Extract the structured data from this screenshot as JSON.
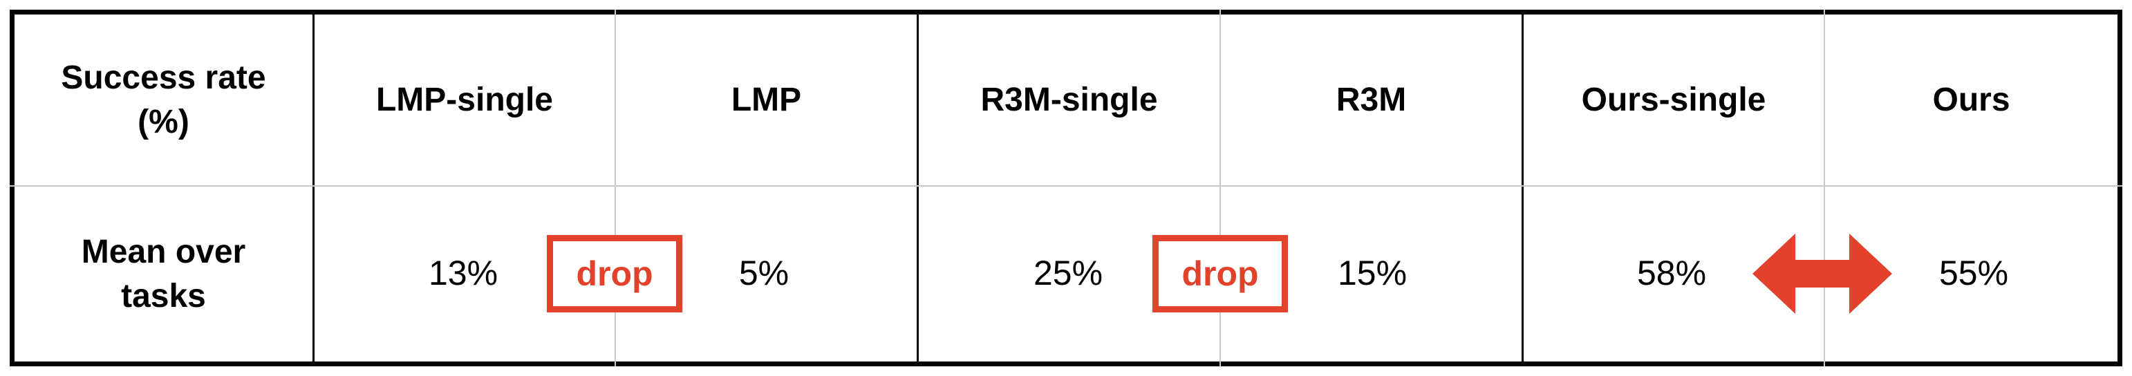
{
  "table": {
    "corner": {
      "line1": "Success rate",
      "line2": "(%)"
    },
    "columns": [
      "LMP-single",
      "LMP",
      "R3M-single",
      "R3M",
      "Ours-single",
      "Ours"
    ],
    "row": {
      "label_line1": "Mean over",
      "label_line2": "tasks"
    },
    "values": [
      "13%",
      "5%",
      "25%",
      "15%",
      "58%",
      "55%"
    ]
  },
  "annotations": {
    "drop_lmp": "drop",
    "drop_r3m": "drop",
    "ours_arrow_icon": "double-arrow-icon"
  },
  "colors": {
    "accent": "#e2412b",
    "border": "#000000",
    "gridline": "#c8c8c8"
  }
}
